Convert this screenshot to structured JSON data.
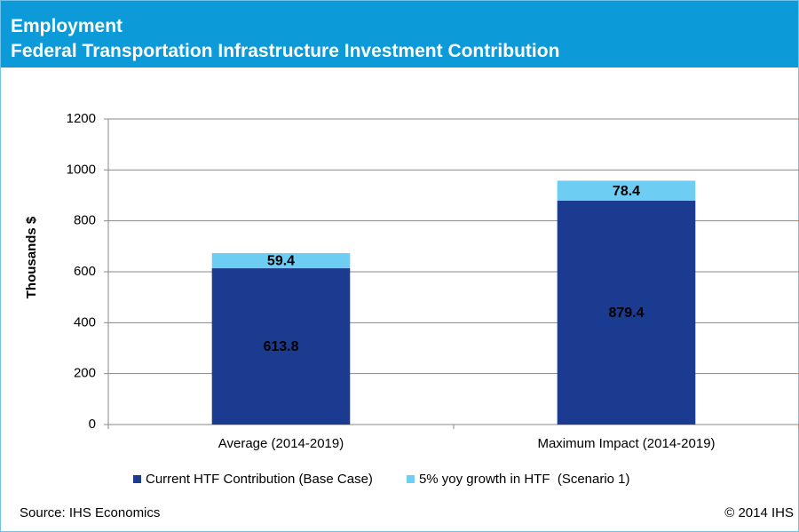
{
  "chart_data": {
    "type": "stacked_bar",
    "title": "Employment",
    "subtitle": "Federal Transportation Infrastructure Investment Contribution",
    "ylabel": "Thousands $",
    "categories": [
      "Average (2014-2019)",
      "Maximum Impact (2014-2019)"
    ],
    "series": [
      {
        "name": "Current HTF Contribution (Base Case)",
        "color": "#1a3b8f",
        "values": [
          613.8,
          879.4
        ]
      },
      {
        "name": "5% yoy growth in HTF  (Scenario 1)",
        "color": "#6dcdf2",
        "values": [
          59.4,
          78.4
        ]
      }
    ],
    "ylim": [
      0,
      1200
    ],
    "yticks": [
      0,
      200,
      400,
      600,
      800,
      1000,
      1200
    ],
    "grid": true,
    "source": "Source: IHS Economics",
    "copyright": "© 2014 IHS"
  }
}
